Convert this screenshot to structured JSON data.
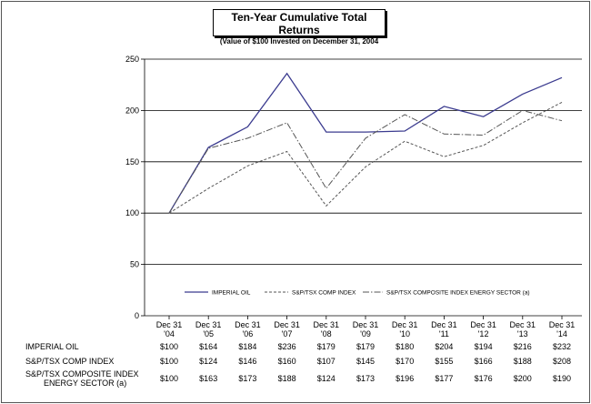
{
  "chart_data": {
    "type": "line",
    "title": "Ten-Year Cumulative Total Returns",
    "subtitle": "(Value of $100 Invested on December 31, 2004",
    "categories": [
      [
        "Dec 31",
        "'04"
      ],
      [
        "Dec 31",
        "'05"
      ],
      [
        "Dec 31",
        "'06"
      ],
      [
        "Dec 31",
        "'07"
      ],
      [
        "Dec 31",
        "'08"
      ],
      [
        "Dec 31",
        "'09"
      ],
      [
        "Dec 31",
        "'10"
      ],
      [
        "Dec 31",
        "'11"
      ],
      [
        "Dec 31",
        "'12"
      ],
      [
        "Dec 31",
        "'13"
      ],
      [
        "Dec 31",
        "'14"
      ]
    ],
    "ylim": [
      0,
      250
    ],
    "yticks": [
      "0",
      "50",
      "100",
      "150",
      "200",
      "250"
    ],
    "grid": "horizontal",
    "legend_placement": "bottom",
    "series": [
      {
        "name": "IMPERIAL OIL",
        "values": [
          100,
          164,
          184,
          236,
          179,
          179,
          180,
          204,
          194,
          216,
          232
        ],
        "labels": [
          "$100",
          "$164",
          "$184",
          "$236",
          "$179",
          "$179",
          "$180",
          "$204",
          "$194",
          "$216",
          "$232"
        ],
        "color": "#3b3b8f",
        "dash": "solid"
      },
      {
        "name": "S&P/TSX COMP INDEX",
        "values": [
          100,
          124,
          146,
          160,
          107,
          145,
          170,
          155,
          166,
          188,
          208
        ],
        "labels": [
          "$100",
          "$124",
          "$146",
          "$160",
          "$107",
          "$145",
          "$170",
          "$155",
          "$166",
          "$188",
          "$208"
        ],
        "color": "#555555",
        "dash": "dashed"
      },
      {
        "name": "S&P/TSX COMPOSITE INDEX ENERGY SECTOR (a)",
        "values": [
          100,
          163,
          173,
          188,
          124,
          173,
          196,
          177,
          176,
          200,
          190
        ],
        "labels": [
          "$100",
          "$163",
          "$173",
          "$188",
          "$124",
          "$173",
          "$196",
          "$177",
          "$176",
          "$200",
          "$190"
        ],
        "color": "#555555",
        "dash": "dashdot"
      }
    ]
  },
  "table": {
    "row_labels": [
      [
        "IMPERIAL OIL"
      ],
      [
        "S&P/TSX COMP INDEX"
      ],
      [
        "S&P/TSX COMPOSITE INDEX",
        "ENERGY SECTOR (a)"
      ]
    ]
  }
}
